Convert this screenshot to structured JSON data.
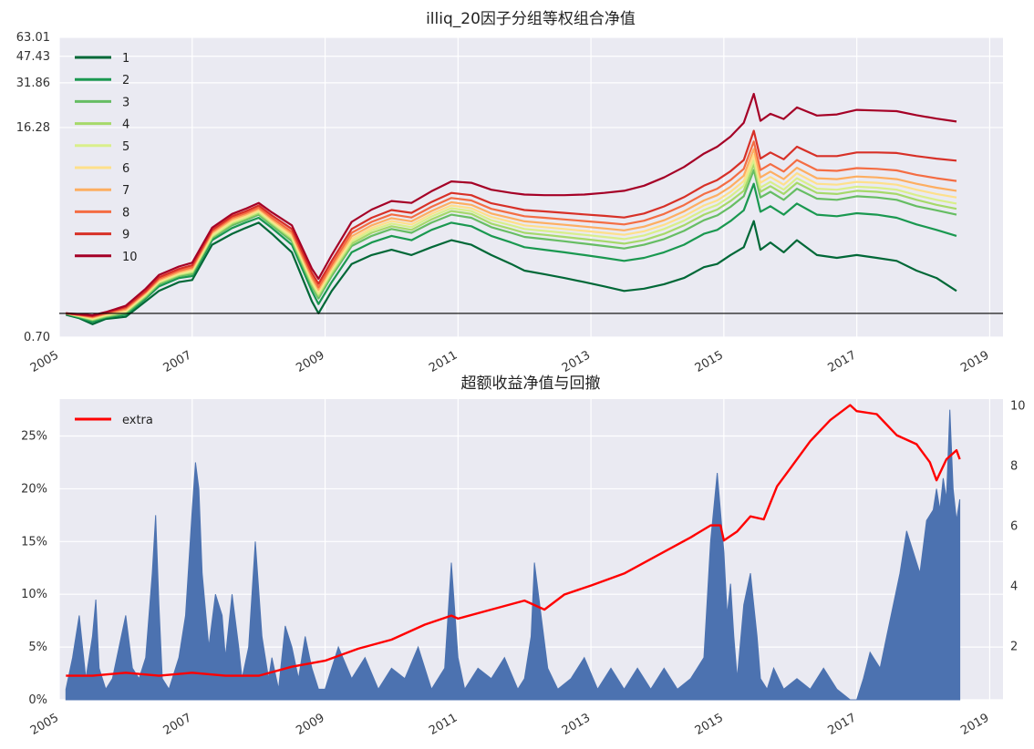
{
  "chart_data": [
    {
      "type": "line",
      "title": "illiq_20因子分组等权组合净值",
      "yscale": "log",
      "ylim": [
        0.7,
        63.01
      ],
      "yticks": [
        "63.01",
        "47.43",
        "31.86",
        "16.28",
        "0.70"
      ],
      "x_ticks": [
        "2005",
        "2007",
        "2009",
        "2011",
        "2013",
        "2015",
        "2017",
        "2019"
      ],
      "xlim": [
        2005.0,
        2019.2
      ],
      "reference_line_y": 1.0,
      "grid": true,
      "legend_position": "top-left",
      "x": [
        2005.1,
        2005.3,
        2005.5,
        2005.7,
        2006.0,
        2006.3,
        2006.5,
        2006.8,
        2007.0,
        2007.3,
        2007.6,
        2007.8,
        2008.0,
        2008.2,
        2008.5,
        2008.8,
        2008.9,
        2009.1,
        2009.4,
        2009.7,
        2010.0,
        2010.3,
        2010.6,
        2010.9,
        2011.2,
        2011.5,
        2011.8,
        2012.0,
        2012.3,
        2012.6,
        2012.9,
        2013.2,
        2013.5,
        2013.8,
        2014.1,
        2014.4,
        2014.7,
        2014.9,
        2015.1,
        2015.3,
        2015.45,
        2015.55,
        2015.7,
        2015.9,
        2016.1,
        2016.4,
        2016.7,
        2017.0,
        2017.3,
        2017.6,
        2017.9,
        2018.2,
        2018.5
      ],
      "series": [
        {
          "name": "1",
          "color": "#006837",
          "values": [
            0.98,
            0.93,
            0.85,
            0.92,
            0.95,
            1.2,
            1.4,
            1.6,
            1.65,
            2.8,
            3.3,
            3.6,
            3.9,
            3.3,
            2.5,
            1.2,
            1.0,
            1.4,
            2.1,
            2.4,
            2.6,
            2.4,
            2.7,
            3.0,
            2.8,
            2.4,
            2.1,
            1.9,
            1.8,
            1.7,
            1.6,
            1.5,
            1.4,
            1.45,
            1.55,
            1.7,
            2.0,
            2.1,
            2.4,
            2.7,
            4.0,
            2.6,
            2.9,
            2.5,
            3.0,
            2.4,
            2.3,
            2.4,
            2.3,
            2.2,
            1.9,
            1.7,
            1.4
          ]
        },
        {
          "name": "2",
          "color": "#1a9850",
          "values": [
            0.99,
            0.94,
            0.88,
            0.94,
            0.98,
            1.25,
            1.5,
            1.7,
            1.75,
            3.0,
            3.6,
            3.9,
            4.2,
            3.6,
            2.8,
            1.4,
            1.15,
            1.6,
            2.5,
            2.9,
            3.2,
            3.0,
            3.5,
            3.9,
            3.7,
            3.2,
            2.9,
            2.7,
            2.6,
            2.5,
            2.4,
            2.3,
            2.2,
            2.3,
            2.5,
            2.8,
            3.3,
            3.5,
            4.0,
            4.7,
            7.0,
            4.6,
            5.0,
            4.4,
            5.2,
            4.4,
            4.3,
            4.5,
            4.4,
            4.2,
            3.8,
            3.5,
            3.2
          ]
        },
        {
          "name": "3",
          "color": "#66bd63",
          "values": [
            1.0,
            0.95,
            0.9,
            0.95,
            1.0,
            1.28,
            1.55,
            1.75,
            1.8,
            3.1,
            3.75,
            4.05,
            4.4,
            3.75,
            2.95,
            1.5,
            1.25,
            1.75,
            2.75,
            3.2,
            3.55,
            3.35,
            3.9,
            4.4,
            4.2,
            3.65,
            3.35,
            3.15,
            3.05,
            2.95,
            2.85,
            2.75,
            2.65,
            2.8,
            3.05,
            3.45,
            4.05,
            4.35,
            4.95,
            5.8,
            8.6,
            5.7,
            6.2,
            5.5,
            6.5,
            5.6,
            5.5,
            5.8,
            5.7,
            5.5,
            5.0,
            4.7,
            4.4
          ]
        },
        {
          "name": "4",
          "color": "#a6d96a",
          "values": [
            1.0,
            0.96,
            0.91,
            0.96,
            1.02,
            1.3,
            1.58,
            1.78,
            1.85,
            3.15,
            3.85,
            4.15,
            4.5,
            3.85,
            3.05,
            1.55,
            1.3,
            1.82,
            2.85,
            3.35,
            3.7,
            3.5,
            4.1,
            4.65,
            4.45,
            3.85,
            3.55,
            3.35,
            3.25,
            3.15,
            3.05,
            2.95,
            2.85,
            3.0,
            3.3,
            3.75,
            4.4,
            4.75,
            5.4,
            6.3,
            9.4,
            6.2,
            6.75,
            6.0,
            7.1,
            6.1,
            6.0,
            6.3,
            6.2,
            6.0,
            5.5,
            5.1,
            4.8
          ]
        },
        {
          "name": "5",
          "color": "#d9ef8b",
          "values": [
            1.0,
            0.96,
            0.92,
            0.97,
            1.03,
            1.32,
            1.6,
            1.8,
            1.88,
            3.2,
            3.92,
            4.22,
            4.6,
            3.92,
            3.12,
            1.6,
            1.34,
            1.88,
            2.95,
            3.48,
            3.85,
            3.65,
            4.28,
            4.85,
            4.65,
            4.05,
            3.75,
            3.55,
            3.45,
            3.35,
            3.25,
            3.15,
            3.05,
            3.22,
            3.55,
            4.02,
            4.72,
            5.1,
            5.8,
            6.8,
            10.0,
            6.6,
            7.2,
            6.4,
            7.6,
            6.5,
            6.4,
            6.7,
            6.6,
            6.4,
            5.9,
            5.5,
            5.2
          ]
        },
        {
          "name": "6",
          "color": "#fee08b",
          "values": [
            1.0,
            0.97,
            0.93,
            0.98,
            1.04,
            1.34,
            1.62,
            1.83,
            1.92,
            3.28,
            4.0,
            4.3,
            4.7,
            4.0,
            3.2,
            1.65,
            1.38,
            1.94,
            3.05,
            3.6,
            4.0,
            3.8,
            4.45,
            5.05,
            4.85,
            4.25,
            3.95,
            3.75,
            3.65,
            3.55,
            3.45,
            3.35,
            3.25,
            3.43,
            3.78,
            4.3,
            5.05,
            5.45,
            6.2,
            7.3,
            10.8,
            7.1,
            7.75,
            6.9,
            8.2,
            7.0,
            6.9,
            7.2,
            7.1,
            6.9,
            6.4,
            6.0,
            5.7
          ]
        },
        {
          "name": "7",
          "color": "#fdae61",
          "values": [
            1.0,
            0.97,
            0.94,
            0.99,
            1.06,
            1.36,
            1.65,
            1.86,
            1.96,
            3.35,
            4.1,
            4.4,
            4.8,
            4.1,
            3.3,
            1.7,
            1.43,
            2.0,
            3.18,
            3.75,
            4.18,
            3.98,
            4.65,
            5.3,
            5.1,
            4.48,
            4.18,
            3.98,
            3.88,
            3.78,
            3.68,
            3.58,
            3.48,
            3.68,
            4.05,
            4.62,
            5.45,
            5.9,
            6.7,
            7.9,
            11.8,
            7.7,
            8.4,
            7.5,
            8.9,
            7.6,
            7.5,
            7.8,
            7.7,
            7.5,
            7.0,
            6.6,
            6.3
          ]
        },
        {
          "name": "8",
          "color": "#f46d43",
          "values": [
            1.0,
            0.98,
            0.95,
            1.0,
            1.08,
            1.38,
            1.68,
            1.9,
            2.0,
            3.42,
            4.2,
            4.5,
            4.9,
            4.2,
            3.4,
            1.76,
            1.48,
            2.08,
            3.35,
            3.95,
            4.42,
            4.22,
            4.95,
            5.65,
            5.45,
            4.8,
            4.5,
            4.3,
            4.2,
            4.1,
            4.0,
            3.9,
            3.8,
            4.02,
            4.45,
            5.08,
            6.0,
            6.5,
            7.4,
            8.75,
            13.2,
            8.6,
            9.4,
            8.4,
            10.0,
            8.6,
            8.5,
            8.85,
            8.75,
            8.55,
            8.0,
            7.6,
            7.3
          ]
        },
        {
          "name": "9",
          "color": "#d73027",
          "values": [
            1.0,
            0.98,
            0.96,
            1.01,
            1.1,
            1.4,
            1.72,
            1.95,
            2.06,
            3.5,
            4.3,
            4.62,
            5.05,
            4.35,
            3.55,
            1.84,
            1.56,
            2.2,
            3.55,
            4.2,
            4.72,
            4.52,
            5.32,
            6.1,
            5.9,
            5.22,
            4.92,
            4.72,
            4.62,
            4.52,
            4.42,
            4.32,
            4.22,
            4.48,
            4.98,
            5.72,
            6.8,
            7.4,
            8.45,
            10.0,
            15.5,
            10.2,
            11.2,
            10.1,
            12.2,
            10.6,
            10.6,
            11.2,
            11.2,
            11.1,
            10.6,
            10.2,
            9.9
          ]
        },
        {
          "name": "10",
          "color": "#a50026",
          "values": [
            1.0,
            0.99,
            0.97,
            1.02,
            1.12,
            1.45,
            1.78,
            2.02,
            2.14,
            3.62,
            4.45,
            4.8,
            5.25,
            4.55,
            3.75,
            1.96,
            1.68,
            2.4,
            3.95,
            4.75,
            5.4,
            5.25,
            6.25,
            7.25,
            7.1,
            6.4,
            6.1,
            5.95,
            5.9,
            5.9,
            5.95,
            6.1,
            6.3,
            6.8,
            7.7,
            9.0,
            11.0,
            12.2,
            14.2,
            17.5,
            27.0,
            18.0,
            20.0,
            18.5,
            22.0,
            19.5,
            19.8,
            21.2,
            21.0,
            20.8,
            19.6,
            18.6,
            17.8
          ]
        }
      ]
    },
    {
      "type": "bar+line",
      "title": "超额收益净值与回撤",
      "x_ticks": [
        "2005",
        "2007",
        "2009",
        "2011",
        "2013",
        "2015",
        "2017",
        "2019"
      ],
      "xlim": [
        2005.0,
        2019.2
      ],
      "grid": true,
      "legend_position": "top-left",
      "left_axis": {
        "ylim": [
          0,
          0.285
        ],
        "ticks": [
          "0%",
          "5%",
          "10%",
          "15%",
          "20%",
          "25%"
        ],
        "tick_values": [
          0,
          0.05,
          0.1,
          0.15,
          0.2,
          0.25
        ]
      },
      "right_axis": {
        "ylim": [
          0.2,
          10.2
        ],
        "ticks": [
          "2",
          "4",
          "6",
          "8",
          "10"
        ],
        "tick_values": [
          2,
          4,
          6,
          8,
          10
        ]
      },
      "drawdown": {
        "axis": "left",
        "color": "#4c72b0",
        "x": [
          2005.1,
          2005.2,
          2005.3,
          2005.35,
          2005.4,
          2005.5,
          2005.55,
          2005.6,
          2005.7,
          2005.8,
          2005.9,
          2006.0,
          2006.1,
          2006.2,
          2006.3,
          2006.4,
          2006.45,
          2006.5,
          2006.55,
          2006.65,
          2006.8,
          2006.9,
          2007.0,
          2007.05,
          2007.1,
          2007.15,
          2007.25,
          2007.35,
          2007.45,
          2007.5,
          2007.6,
          2007.7,
          2007.75,
          2007.85,
          2007.95,
          2008.05,
          2008.15,
          2008.2,
          2008.3,
          2008.4,
          2008.5,
          2008.6,
          2008.7,
          2008.8,
          2008.9,
          2009.0,
          2009.2,
          2009.4,
          2009.6,
          2009.8,
          2010.0,
          2010.2,
          2010.4,
          2010.6,
          2010.8,
          2010.9,
          2011.0,
          2011.1,
          2011.3,
          2011.5,
          2011.7,
          2011.9,
          2012.0,
          2012.1,
          2012.15,
          2012.25,
          2012.35,
          2012.5,
          2012.7,
          2012.9,
          2013.1,
          2013.3,
          2013.5,
          2013.7,
          2013.9,
          2014.1,
          2014.3,
          2014.5,
          2014.7,
          2014.8,
          2014.9,
          2015.0,
          2015.05,
          2015.1,
          2015.15,
          2015.2,
          2015.3,
          2015.4,
          2015.5,
          2015.55,
          2015.65,
          2015.75,
          2015.9,
          2016.1,
          2016.3,
          2016.5,
          2016.7,
          2016.9,
          2017.0,
          2017.1,
          2017.2,
          2017.35,
          2017.45,
          2017.55,
          2017.65,
          2017.75,
          2017.85,
          2017.95,
          2018.05,
          2018.15,
          2018.2,
          2018.25,
          2018.3,
          2018.35,
          2018.4,
          2018.45,
          2018.5,
          2018.55
        ],
        "values": [
          0.01,
          0.04,
          0.08,
          0.05,
          0.02,
          0.06,
          0.095,
          0.03,
          0.01,
          0.02,
          0.05,
          0.08,
          0.03,
          0.02,
          0.04,
          0.12,
          0.175,
          0.09,
          0.02,
          0.01,
          0.04,
          0.08,
          0.18,
          0.225,
          0.2,
          0.12,
          0.05,
          0.1,
          0.08,
          0.04,
          0.1,
          0.05,
          0.02,
          0.05,
          0.15,
          0.06,
          0.02,
          0.04,
          0.01,
          0.07,
          0.05,
          0.02,
          0.06,
          0.03,
          0.01,
          0.01,
          0.05,
          0.02,
          0.04,
          0.01,
          0.03,
          0.02,
          0.05,
          0.01,
          0.03,
          0.13,
          0.04,
          0.01,
          0.03,
          0.02,
          0.04,
          0.01,
          0.02,
          0.06,
          0.13,
          0.08,
          0.03,
          0.01,
          0.02,
          0.04,
          0.01,
          0.03,
          0.01,
          0.03,
          0.01,
          0.03,
          0.01,
          0.02,
          0.04,
          0.15,
          0.215,
          0.14,
          0.08,
          0.11,
          0.06,
          0.02,
          0.09,
          0.12,
          0.06,
          0.02,
          0.01,
          0.03,
          0.01,
          0.02,
          0.01,
          0.03,
          0.01,
          0.0,
          0.0,
          0.02,
          0.045,
          0.03,
          0.06,
          0.09,
          0.12,
          0.16,
          0.14,
          0.12,
          0.17,
          0.18,
          0.2,
          0.18,
          0.21,
          0.19,
          0.275,
          0.2,
          0.17,
          0.19
        ]
      },
      "series": [
        {
          "name": "extra",
          "axis": "right",
          "color": "#ff0000",
          "x": [
            2005.1,
            2005.5,
            2006.0,
            2006.5,
            2007.0,
            2007.5,
            2008.0,
            2008.5,
            2009.0,
            2009.5,
            2010.0,
            2010.5,
            2010.9,
            2011.0,
            2011.5,
            2012.0,
            2012.3,
            2012.6,
            2013.0,
            2013.5,
            2014.0,
            2014.5,
            2014.8,
            2014.95,
            2015.0,
            2015.2,
            2015.4,
            2015.6,
            2015.8,
            2016.0,
            2016.3,
            2016.6,
            2016.9,
            2017.0,
            2017.3,
            2017.6,
            2017.9,
            2018.1,
            2018.2,
            2018.35,
            2018.5,
            2018.55
          ],
          "values": [
            1.0,
            1.0,
            1.1,
            1.0,
            1.1,
            1.0,
            1.0,
            1.3,
            1.5,
            1.9,
            2.2,
            2.7,
            3.0,
            2.9,
            3.2,
            3.5,
            3.2,
            3.7,
            4.0,
            4.4,
            5.0,
            5.6,
            6.0,
            6.0,
            5.5,
            5.8,
            6.3,
            6.2,
            7.3,
            7.9,
            8.8,
            9.5,
            10.0,
            9.8,
            9.7,
            9.0,
            8.7,
            8.1,
            7.5,
            8.2,
            8.5,
            8.2
          ]
        }
      ]
    }
  ]
}
